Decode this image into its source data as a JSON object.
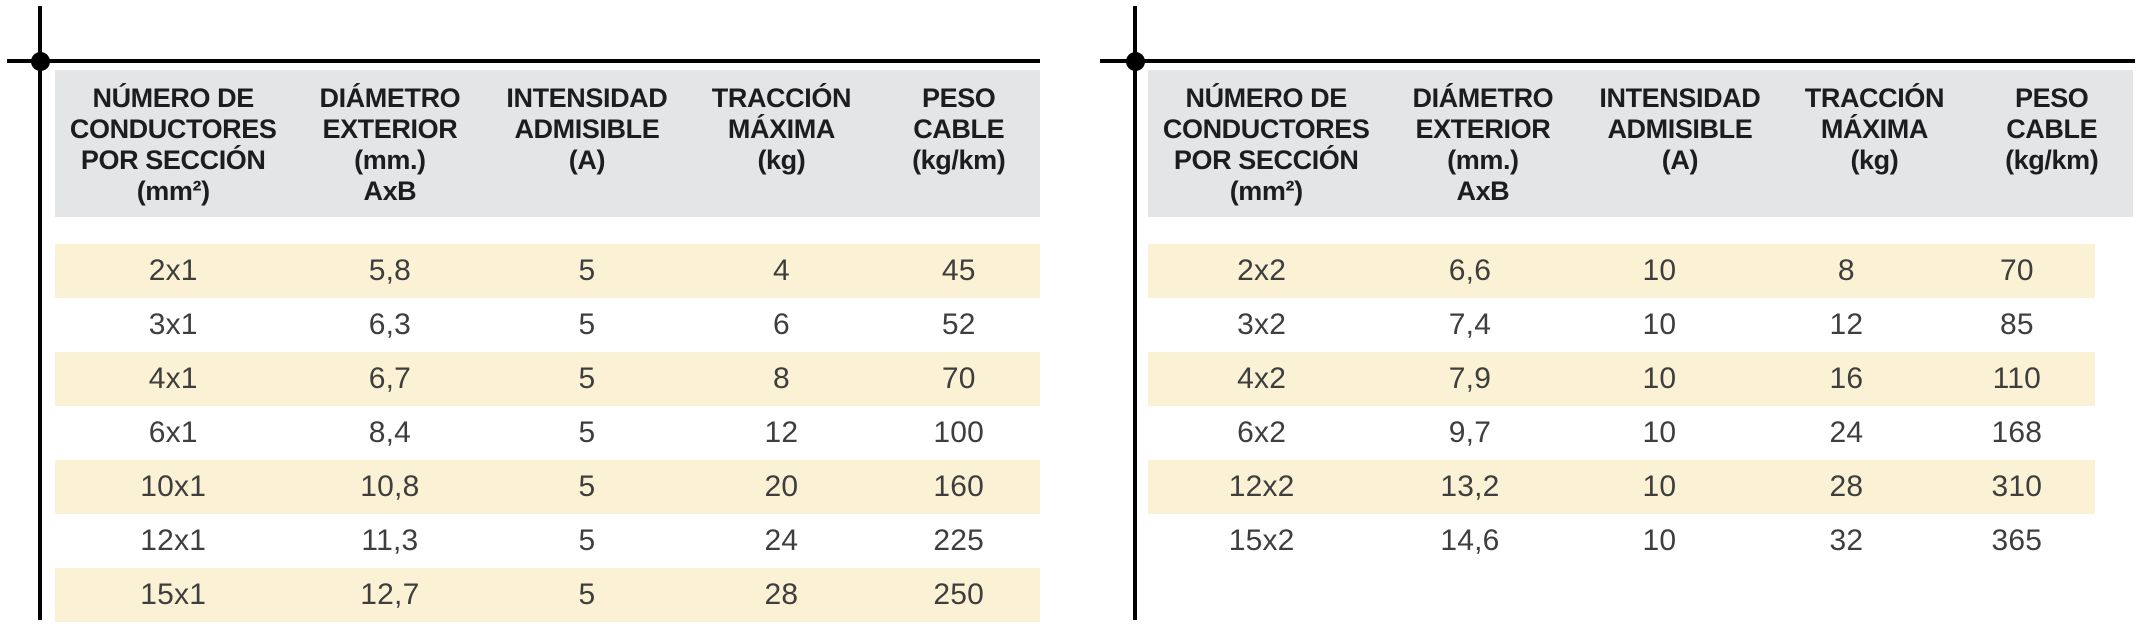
{
  "colors": {
    "header_bg": "#e3e5e7",
    "stripe_bg": "#fbf1d4",
    "header_text": "#1d1d1d",
    "body_text": "#3e3e3e",
    "mark_color": "#000000"
  },
  "tables": [
    {
      "name": "left",
      "columns": [
        [
          "NÚMERO DE",
          "CONDUCTORES",
          "POR SECCIÓN",
          "(mm²)"
        ],
        [
          "DIÁMETRO",
          "EXTERIOR",
          "(mm.)",
          "AxB"
        ],
        [
          "INTENSIDAD",
          "ADMISIBLE",
          "(A)"
        ],
        [
          "TRACCIÓN",
          "MÁXIMA",
          "(kg)"
        ],
        [
          "PESO",
          "CABLE",
          "(kg/km)"
        ]
      ],
      "rows": [
        [
          "2x1",
          "5,8",
          "5",
          "4",
          "45"
        ],
        [
          "3x1",
          "6,3",
          "5",
          "6",
          "52"
        ],
        [
          "4x1",
          "6,7",
          "5",
          "8",
          "70"
        ],
        [
          "6x1",
          "8,4",
          "5",
          "12",
          "100"
        ],
        [
          "10x1",
          "10,8",
          "5",
          "20",
          "160"
        ],
        [
          "12x1",
          "11,3",
          "5",
          "24",
          "225"
        ],
        [
          "15x1",
          "12,7",
          "5",
          "28",
          "250"
        ]
      ]
    },
    {
      "name": "right",
      "columns": [
        [
          "NÚMERO DE",
          "CONDUCTORES",
          "POR SECCIÓN",
          "(mm²)"
        ],
        [
          "DIÁMETRO",
          "EXTERIOR",
          "(mm.)",
          "AxB"
        ],
        [
          "INTENSIDAD",
          "ADMISIBLE",
          "(A)"
        ],
        [
          "TRACCIÓN",
          "MÁXIMA",
          "(kg)"
        ],
        [
          "PESO",
          "CABLE",
          "(kg/km)"
        ]
      ],
      "rows": [
        [
          "2x2",
          "6,6",
          "10",
          "8",
          "70"
        ],
        [
          "3x2",
          "7,4",
          "10",
          "12",
          "85"
        ],
        [
          "4x2",
          "7,9",
          "10",
          "16",
          "110"
        ],
        [
          "6x2",
          "9,7",
          "10",
          "24",
          "168"
        ],
        [
          "12x2",
          "13,2",
          "10",
          "28",
          "310"
        ],
        [
          "15x2",
          "14,6",
          "10",
          "32",
          "365"
        ]
      ]
    }
  ]
}
